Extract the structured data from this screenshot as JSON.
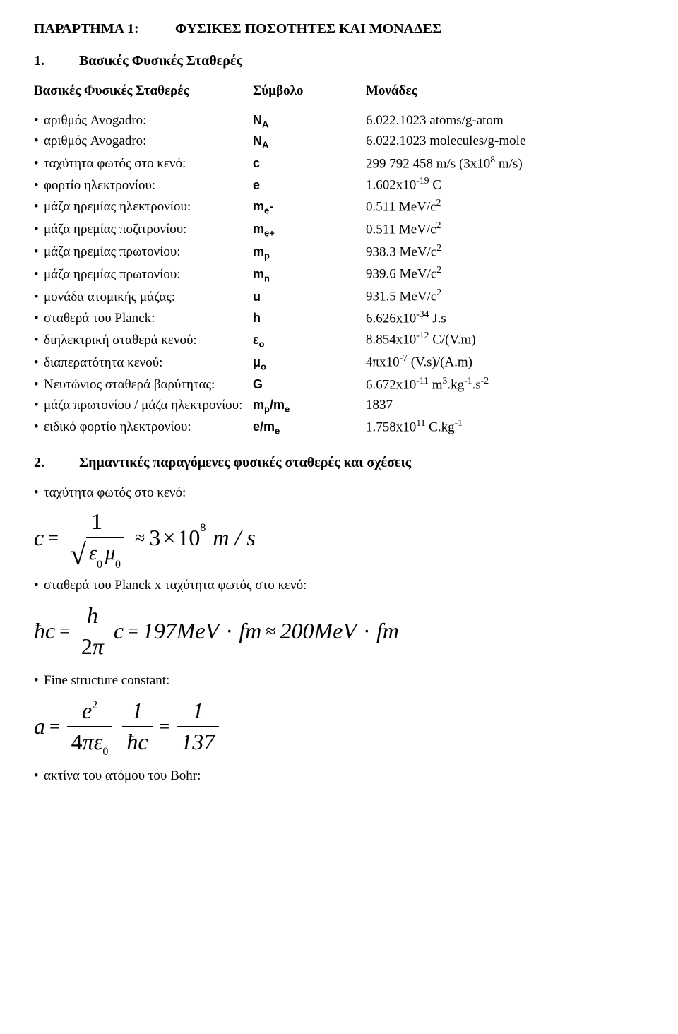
{
  "title": {
    "left": "ΠΑΡΑΡΤΗΜΑ 1:",
    "right": "ΦΥΣΙΚΕΣ ΠΟΣΟΤΗΤΕΣ ΚΑΙ ΜΟΝΑΔΕΣ"
  },
  "section1": {
    "num": "1.",
    "title": "Βασικές Φυσικές Σταθερές"
  },
  "header": {
    "c1": "Βασικές Φυσικές Σταθερές",
    "c2": "Σύμβολο",
    "c3": "Μονάδες"
  },
  "constants": [
    {
      "name": "αριθμός Avogadro:",
      "sym": "N<sub>A</sub>",
      "unit": "6.022.1023 atoms/g-atom"
    },
    {
      "name": "αριθμός Avogadro:",
      "sym": "N<sub>A</sub>",
      "unit": "6.022.1023 molecules/g-mole"
    },
    {
      "name": "ταχύτητα φωτός στο κενό:",
      "sym": "c",
      "unit": "299 792 458 m/s (3x10<sup>8</sup> m/s)"
    },
    {
      "name": "φορτίο ηλεκτρονίου:",
      "sym": "e",
      "unit": "1.602x10<sup>-19</sup> C"
    },
    {
      "name": "μάζα ηρεμίας ηλεκτρονίου:",
      "sym": "m<sub>e</sub>-",
      "unit": "0.511 MeV/c<sup>2</sup>"
    },
    {
      "name": "μάζα ηρεμίας ποζιτρονίου:",
      "sym": "m<sub>e+</sub>",
      "unit": "0.511 MeV/c<sup>2</sup>"
    },
    {
      "name": "μάζα ηρεμίας πρωτονίου:",
      "sym": "m<sub>p</sub>",
      "unit": "938.3 MeV/c<sup>2</sup>"
    },
    {
      "name": "μάζα ηρεμίας πρωτονίου:",
      "sym": "m<sub>n</sub>",
      "unit": "939.6 MeV/c<sup>2</sup>"
    },
    {
      "name": "μονάδα ατομικής μάζας:",
      "sym": "u",
      "unit": "931.5 MeV/c<sup>2</sup>"
    },
    {
      "name": "σταθερά του Planck:",
      "sym": "h",
      "unit": "6.626x10<sup>-34</sup> J.s"
    },
    {
      "name": "διηλεκτρική σταθερά κενού:",
      "sym": "ε<sub>ο</sub>",
      "unit": "8.854x10<sup>-12</sup> C/(V.m)"
    },
    {
      "name": "διαπερατότητα κενού:",
      "sym": "μ<sub>ο</sub>",
      "unit": "4πx10<sup>-7</sup> (V.s)/(A.m)"
    },
    {
      "name": "Νευτώνιος σταθερά βαρύτητας:",
      "sym": "G",
      "unit": "6.672x10<sup>-11</sup> m<sup>3</sup>.kg<sup>-1</sup>.s<sup>-2</sup>"
    },
    {
      "name": "μάζα πρωτονίου / μάζα ηλεκτρονίου:",
      "sym": "m<sub>p</sub>/m<sub>e</sub>",
      "unit": "1837"
    },
    {
      "name": "ειδικό φορτίο ηλεκτρονίου:",
      "sym": "e/m<sub>e</sub>",
      "unit": "1.758x10<sup>11</sup> C.kg<sup>-1</sup>"
    }
  ],
  "section2": {
    "num": "2.",
    "title": "Σημαντικές παραγόμενες φυσικές σταθερές και σχέσεις"
  },
  "bullets": {
    "b1": "ταχύτητα φωτός στο κενό:",
    "b2": "σταθερά του Planck x ταχύτητα φωτός στο κενό:",
    "b3": "Fine structure constant:",
    "b4": "ακτίνα του ατόμου του Bohr:"
  },
  "formulas": {
    "f1": {
      "lhs": "c",
      "rhs_num": "1",
      "rhs_den_e": "ε",
      "rhs_den_m": "μ",
      "rhs_sub": "0",
      "approx_val": "3",
      "approx_ten": "10",
      "approx_exp": "8",
      "units": "m / s"
    },
    "f2": {
      "lhs": "ħc",
      "num": "h",
      "den": "2π",
      "var": "c",
      "val1": "197",
      "unitMeV": "MeV",
      "dot": "·",
      "unitfm": "fm",
      "val2": "200"
    },
    "f3": {
      "lhs": "a",
      "num1_e": "e",
      "num1_exp": "2",
      "den1": "4πε",
      "den1_sub": "0",
      "num2": "1",
      "den2": "ħc",
      "num3": "1",
      "den3": "137"
    }
  }
}
